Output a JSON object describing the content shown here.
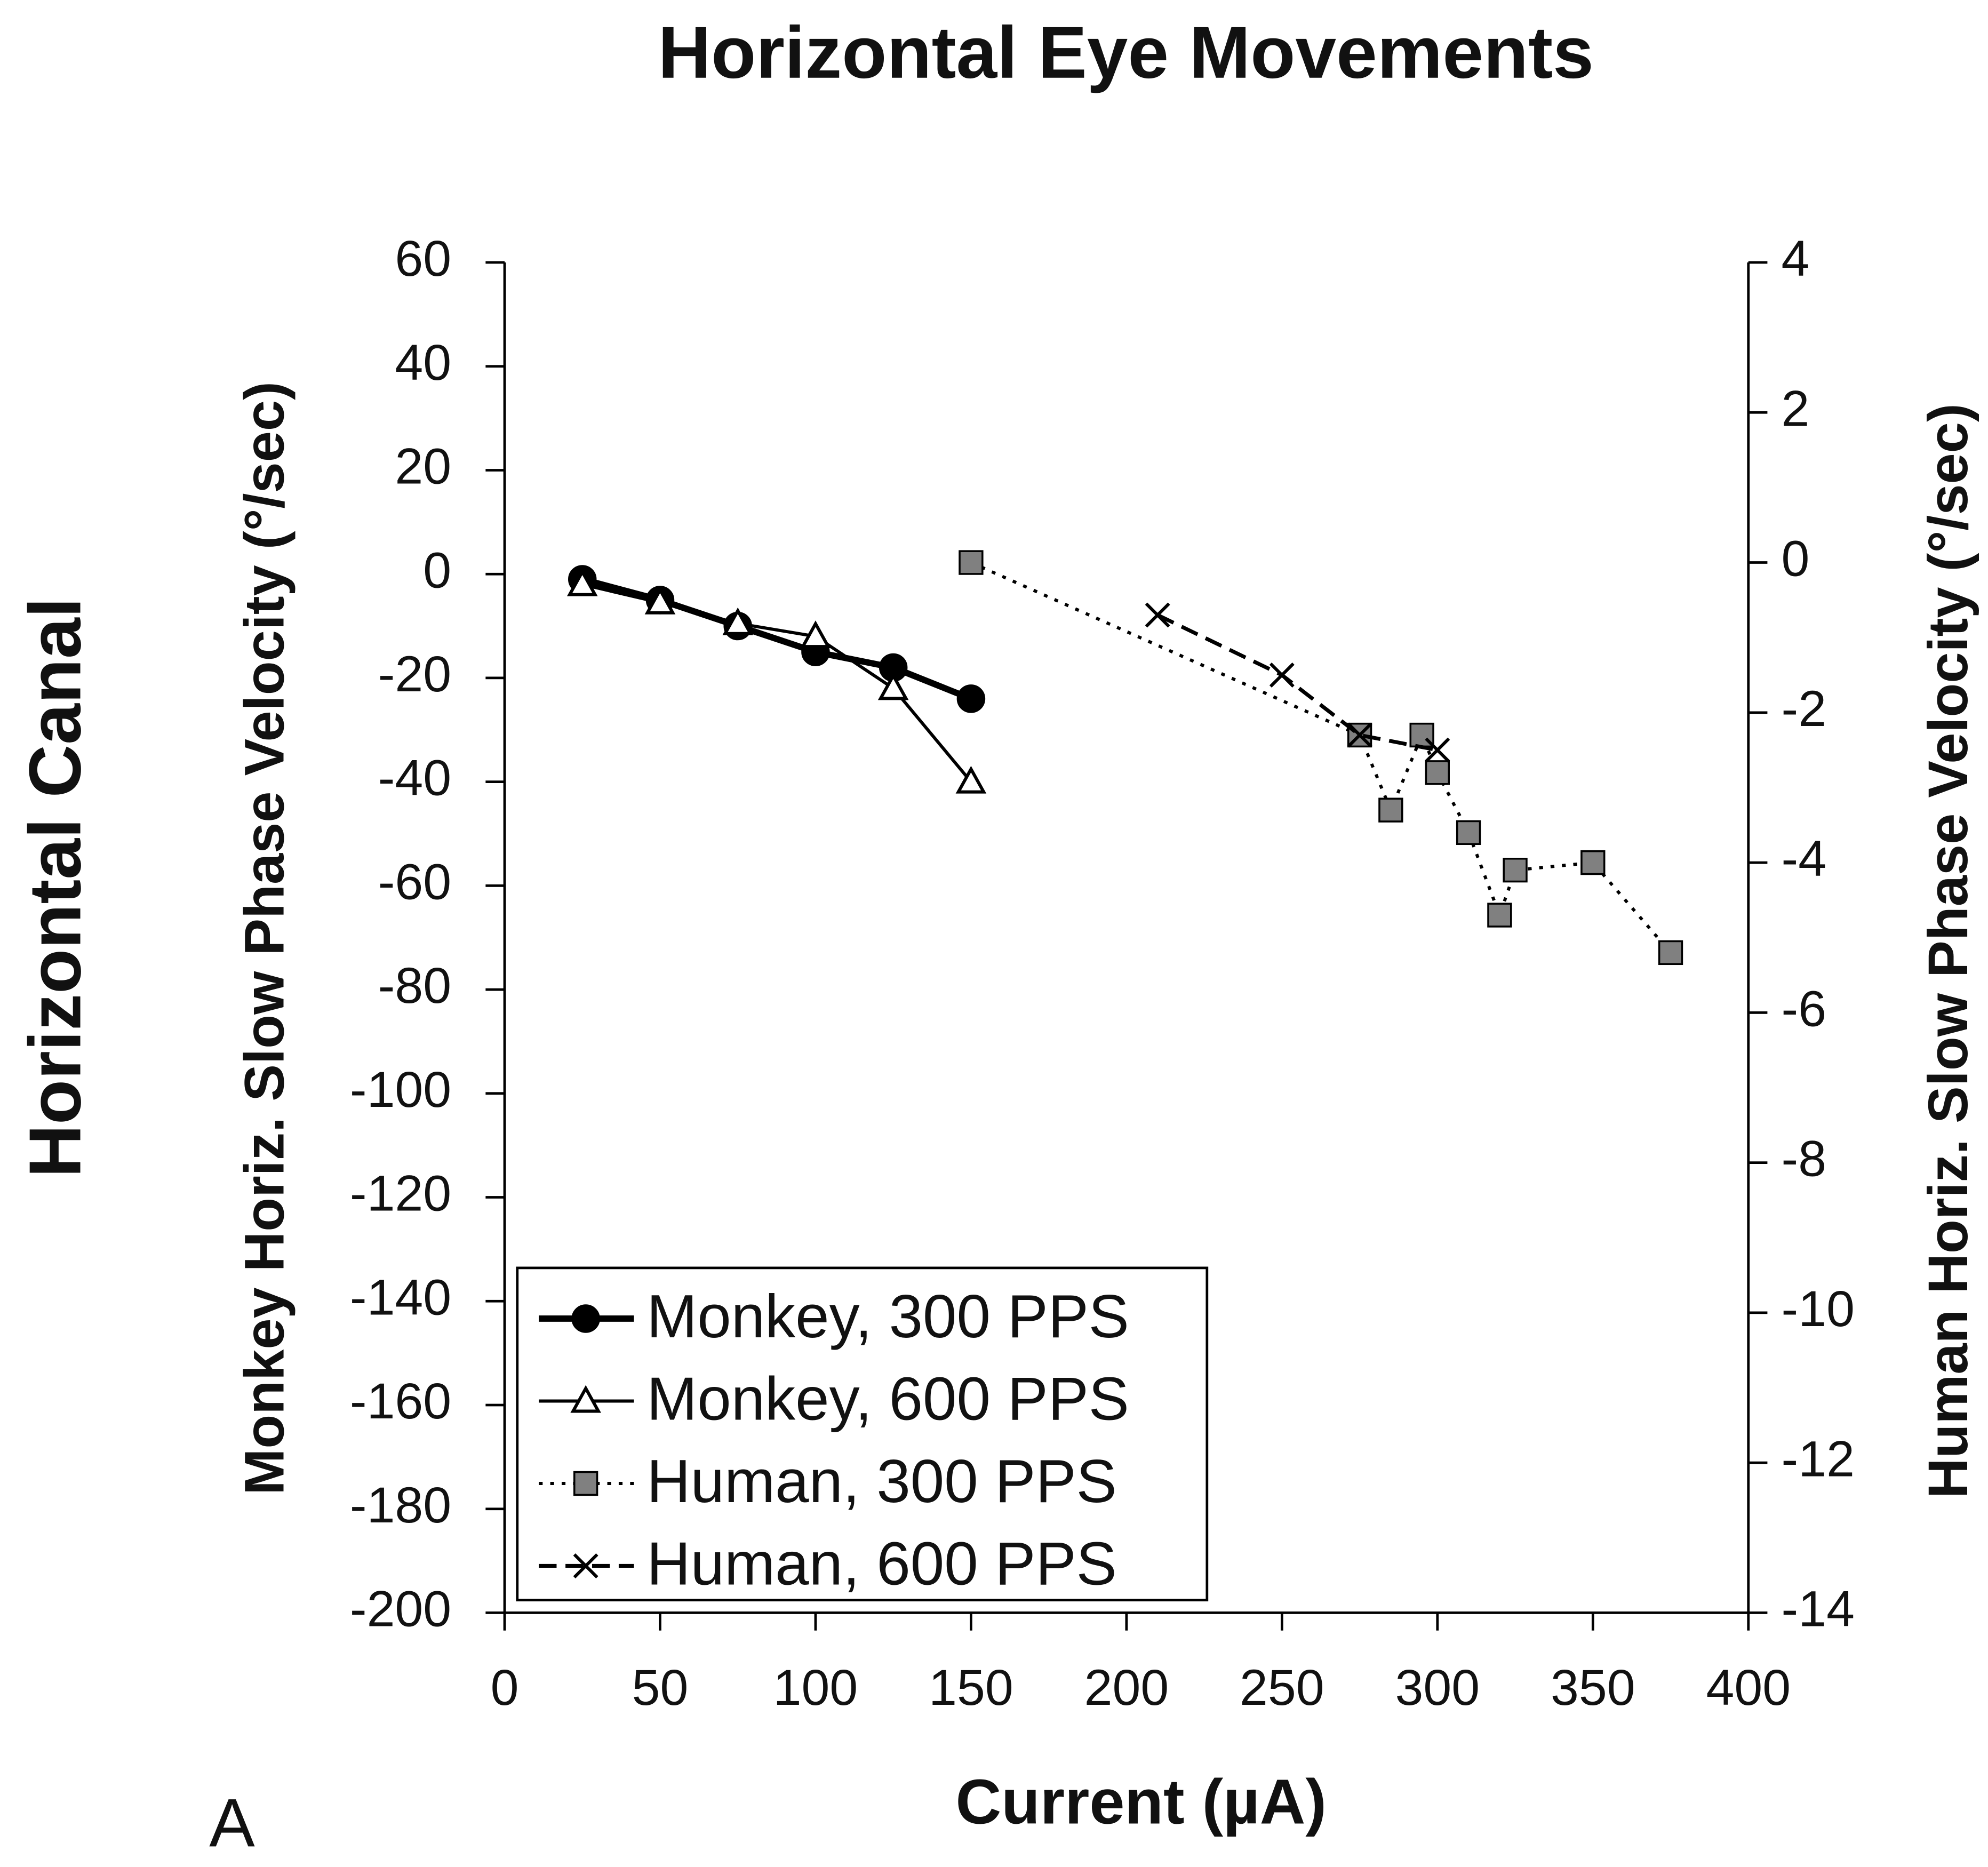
{
  "chart_data": {
    "type": "line",
    "title": "Horizontal Eye Movements",
    "side_label": "Horizontal Canal",
    "panel_label": "A",
    "xlabel": "Current (µA)",
    "ylabel": "Monkey Horiz. Slow Phase Velocity (°/sec)",
    "y2label": "Human Horiz. Slow Phase Velocity (°/sec)",
    "xlim": [
      0,
      400
    ],
    "xticks": [
      0,
      50,
      100,
      150,
      200,
      250,
      300,
      350,
      400
    ],
    "ylim": [
      -200,
      60
    ],
    "yticks": [
      -200,
      -180,
      -160,
      -140,
      -120,
      -100,
      -80,
      -60,
      -40,
      -20,
      0,
      20,
      40,
      60
    ],
    "y2lim": [
      -14,
      4
    ],
    "y2ticks": [
      -14,
      -12,
      -10,
      -8,
      -6,
      -4,
      -2,
      0,
      2,
      4
    ],
    "legend": "lower left",
    "series": [
      {
        "name": "Monkey, 300 PPS",
        "color": "#000000",
        "marker": "circle",
        "marker_fill": "#000000",
        "line_style": "solid",
        "line_width": 5,
        "x": [
          25,
          50,
          75,
          100,
          125,
          150
        ],
        "values": [
          -1,
          -5,
          -10,
          -15,
          -18,
          -24
        ]
      },
      {
        "name": "Monkey, 600 PPS",
        "color": "#000000",
        "marker": "triangle",
        "marker_fill": "#ffffff",
        "line_style": "solid",
        "line_width": 2.5,
        "x": [
          25,
          50,
          75,
          100,
          125,
          150
        ],
        "values": [
          -2,
          -5.5,
          -9.5,
          -12,
          -22,
          -40
        ]
      },
      {
        "name": "Human, 300 PPS",
        "color": "#000000",
        "marker": "square",
        "marker_fill": "#808080",
        "line_style": "dotted",
        "line_width": 2.5,
        "axis": "y2",
        "x": [
          150,
          275,
          285,
          295,
          300,
          310,
          320,
          325,
          350,
          375
        ],
        "values": [
          0,
          -2.3,
          -3.3,
          -2.3,
          -2.8,
          -3.6,
          -4.7,
          -4.1,
          -4.0,
          -5.2
        ]
      },
      {
        "name": "Human, 600 PPS",
        "color": "#000000",
        "marker": "x",
        "marker_fill": "#000000",
        "line_style": "dashed",
        "line_width": 3,
        "axis": "y2",
        "x": [
          210,
          250,
          275,
          300
        ],
        "values": [
          -0.7,
          -1.5,
          -2.3,
          -2.5
        ]
      }
    ]
  }
}
